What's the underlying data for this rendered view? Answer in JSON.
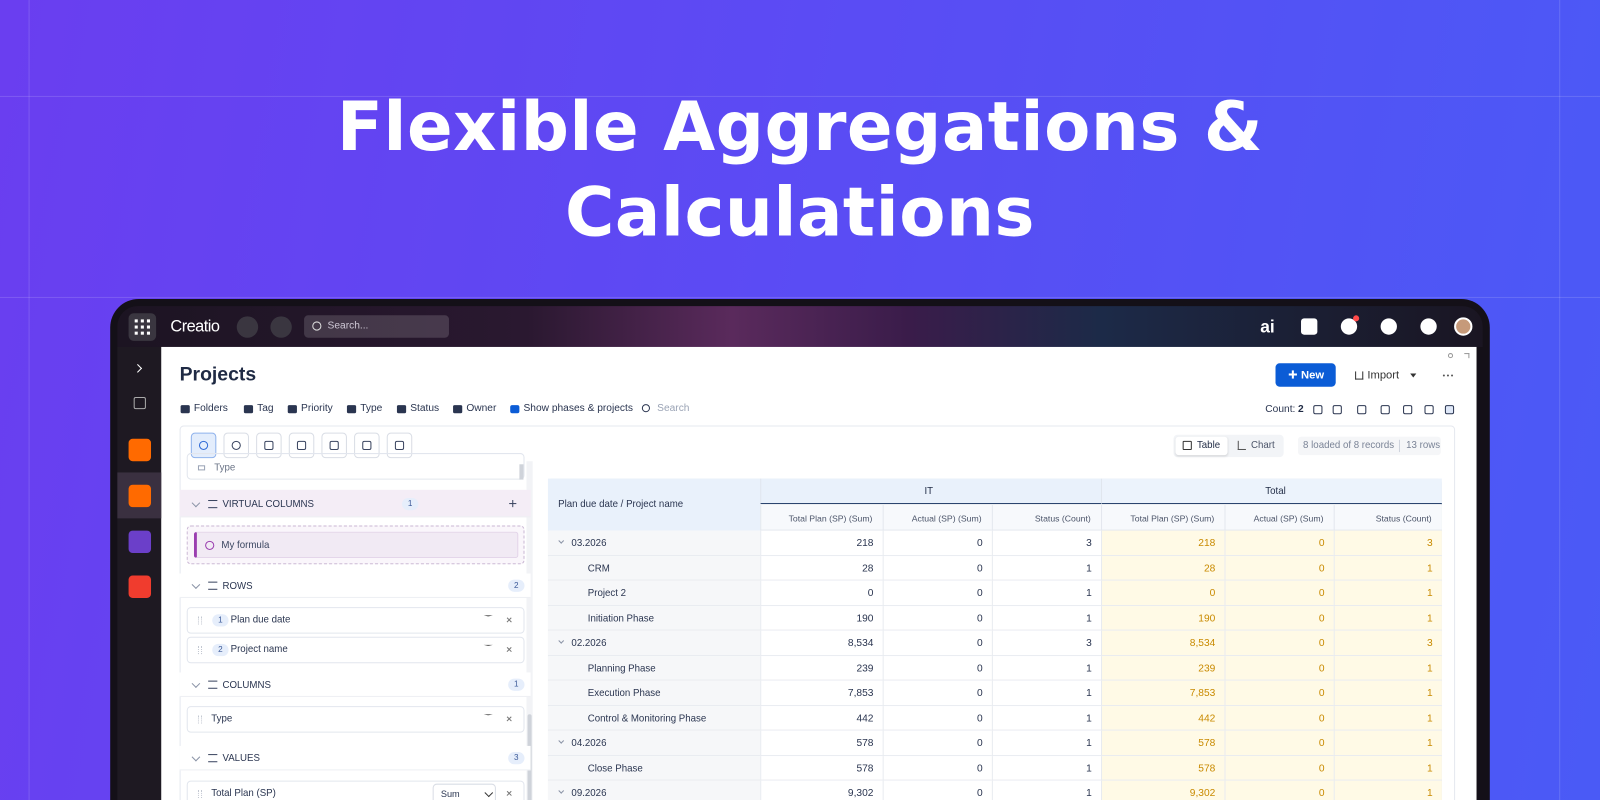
{
  "headline": {
    "lines": [
      "Flexible Aggregations &",
      "Calculations"
    ]
  },
  "topbar": {
    "logo": "Creatio",
    "search": "Search...",
    "ai": "ai"
  },
  "page": {
    "title": "Projects",
    "new_button": "New",
    "import_button": "Import"
  },
  "filters": {
    "items": [
      "Folders",
      "Tag",
      "Priority",
      "Type",
      "Status",
      "Owner",
      "Show phases & projects"
    ],
    "search": "Search",
    "count_label": "Count:",
    "count_value": "2"
  },
  "toolbar": {
    "views": [
      "Table",
      "Chart"
    ],
    "records": "8 loaded of 8 records",
    "rows": "13 rows"
  },
  "panel": {
    "top_field": "Type",
    "sections": [
      {
        "title": "VIRTUAL COLUMNS",
        "count": "1",
        "items": [
          {
            "label": "My formula"
          }
        ]
      },
      {
        "title": "ROWS",
        "count": "2",
        "items": [
          {
            "index": "1",
            "label": "Plan due date"
          },
          {
            "index": "2",
            "label": "Project name"
          }
        ]
      },
      {
        "title": "COLUMNS",
        "count": "1",
        "items": [
          {
            "label": "Type"
          }
        ]
      },
      {
        "title": "VALUES",
        "count": "3",
        "items": [
          {
            "label": "Total Plan (SP)",
            "aggregate": "Sum"
          }
        ]
      }
    ]
  },
  "table": {
    "corner": "Plan due date / Project name",
    "groups": [
      "IT",
      "Total"
    ],
    "columns": [
      "Total Plan (SP) (Sum)",
      "Actual (SP) (Sum)",
      "Status (Count)",
      "Total Plan (SP) (Sum)",
      "Actual (SP) (Sum)",
      "Status (Count)"
    ],
    "rows": [
      {
        "label": "03.2026",
        "level": 0,
        "cells": [
          "218",
          "0",
          "3",
          "218",
          "0",
          "3"
        ]
      },
      {
        "label": "CRM",
        "level": 1,
        "cells": [
          "28",
          "0",
          "1",
          "28",
          "0",
          "1"
        ]
      },
      {
        "label": "Project 2",
        "level": 1,
        "cells": [
          "0",
          "0",
          "1",
          "0",
          "0",
          "1"
        ]
      },
      {
        "label": "Initiation Phase",
        "level": 1,
        "cells": [
          "190",
          "0",
          "1",
          "190",
          "0",
          "1"
        ]
      },
      {
        "label": "02.2026",
        "level": 0,
        "cells": [
          "8,534",
          "0",
          "3",
          "8,534",
          "0",
          "3"
        ]
      },
      {
        "label": "Planning Phase",
        "level": 1,
        "cells": [
          "239",
          "0",
          "1",
          "239",
          "0",
          "1"
        ]
      },
      {
        "label": "Execution Phase",
        "level": 1,
        "cells": [
          "7,853",
          "0",
          "1",
          "7,853",
          "0",
          "1"
        ]
      },
      {
        "label": "Control & Monitoring Phase",
        "level": 1,
        "cells": [
          "442",
          "0",
          "1",
          "442",
          "0",
          "1"
        ]
      },
      {
        "label": "04.2026",
        "level": 0,
        "cells": [
          "578",
          "0",
          "1",
          "578",
          "0",
          "1"
        ]
      },
      {
        "label": "Close Phase",
        "level": 1,
        "cells": [
          "578",
          "0",
          "1",
          "578",
          "0",
          "1"
        ]
      },
      {
        "label": "09.2026",
        "level": 0,
        "cells": [
          "9,302",
          "0",
          "1",
          "9,302",
          "0",
          "1"
        ]
      }
    ]
  }
}
